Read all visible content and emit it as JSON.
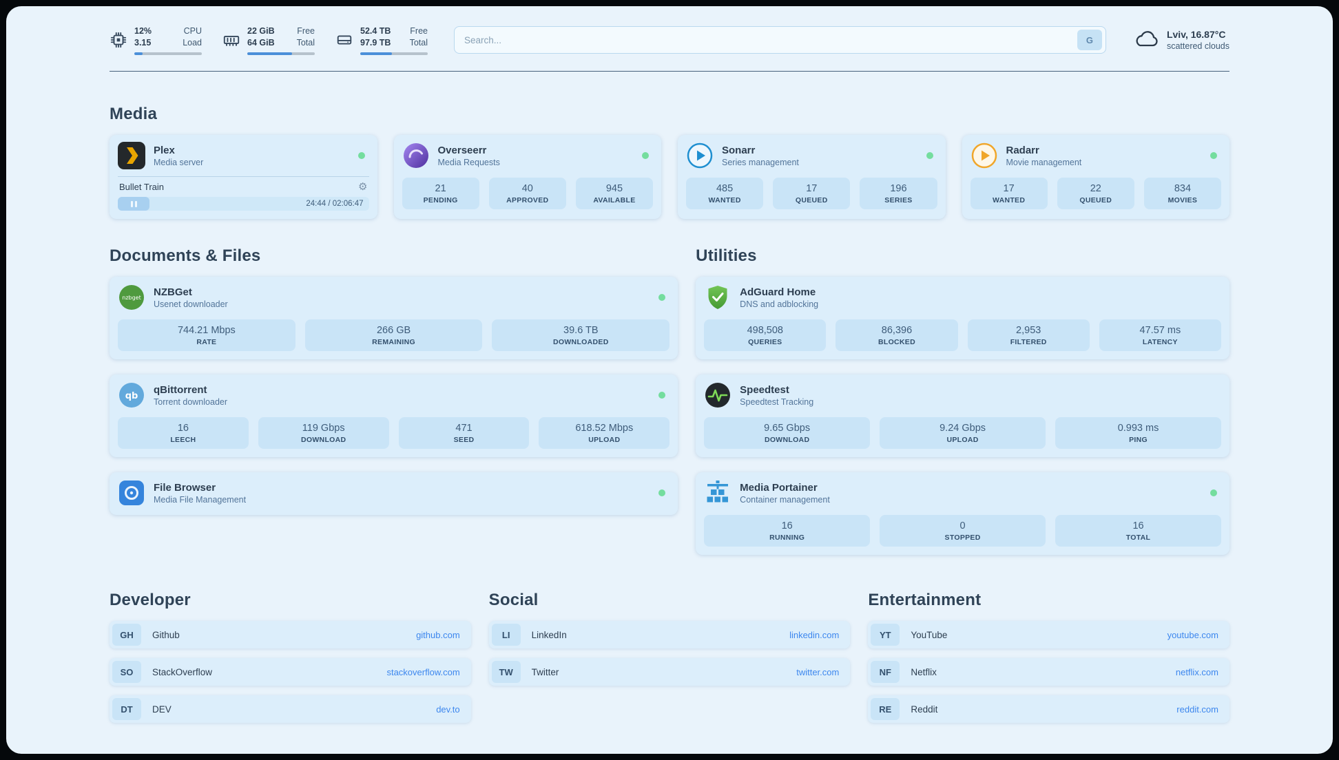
{
  "colors": {
    "page_background": "#e9f3fb",
    "card_background": "#dceefb",
    "stat_background": "#c9e4f7",
    "accent_blue": "#4b8fd9",
    "link_blue": "#3d87ee",
    "status_green": "#74dd9e"
  },
  "topbar": {
    "cpu": {
      "value1": "12%",
      "label1": "CPU",
      "value2": "3.15",
      "label2": "Load",
      "progress": 12
    },
    "memory": {
      "value1": "22 GiB",
      "label1": "Free",
      "value2": "64 GiB",
      "label2": "Total",
      "progress": 66
    },
    "disk": {
      "value1": "52.4 TB",
      "label1": "Free",
      "value2": "97.9 TB",
      "label2": "Total",
      "progress": 47
    },
    "search": {
      "placeholder": "Search...",
      "value": "",
      "button_label": "G"
    },
    "weather": {
      "location": "Lviv, 16.87°C",
      "condition": "scattered clouds"
    }
  },
  "media": {
    "title": "Media",
    "plex": {
      "name": "Plex",
      "subtitle": "Media server",
      "now_playing": "Bullet Train",
      "time": "24:44 / 02:06:47"
    },
    "overseerr": {
      "name": "Overseerr",
      "subtitle": "Media Requests",
      "stats": [
        {
          "value": "21",
          "label": "PENDING"
        },
        {
          "value": "40",
          "label": "APPROVED"
        },
        {
          "value": "945",
          "label": "AVAILABLE"
        }
      ]
    },
    "sonarr": {
      "name": "Sonarr",
      "subtitle": "Series management",
      "stats": [
        {
          "value": "485",
          "label": "WANTED"
        },
        {
          "value": "17",
          "label": "QUEUED"
        },
        {
          "value": "196",
          "label": "SERIES"
        }
      ]
    },
    "radarr": {
      "name": "Radarr",
      "subtitle": "Movie management",
      "stats": [
        {
          "value": "17",
          "label": "WANTED"
        },
        {
          "value": "22",
          "label": "QUEUED"
        },
        {
          "value": "834",
          "label": "MOVIES"
        }
      ]
    }
  },
  "documents": {
    "title": "Documents & Files",
    "nzbget": {
      "name": "NZBGet",
      "subtitle": "Usenet downloader",
      "icon_text": "nzbget",
      "stats": [
        {
          "value": "744.21 Mbps",
          "label": "RATE"
        },
        {
          "value": "266 GB",
          "label": "REMAINING"
        },
        {
          "value": "39.6 TB",
          "label": "DOWNLOADED"
        }
      ]
    },
    "qbittorrent": {
      "name": "qBittorrent",
      "subtitle": "Torrent downloader",
      "icon_text": "qb",
      "stats": [
        {
          "value": "16",
          "label": "LEECH"
        },
        {
          "value": "119 Gbps",
          "label": "DOWNLOAD"
        },
        {
          "value": "471",
          "label": "SEED"
        },
        {
          "value": "618.52 Mbps",
          "label": "UPLOAD"
        }
      ]
    },
    "filebrowser": {
      "name": "File Browser",
      "subtitle": "Media File Management"
    }
  },
  "utilities": {
    "title": "Utilities",
    "adguard": {
      "name": "AdGuard Home",
      "subtitle": "DNS and adblocking",
      "stats": [
        {
          "value": "498,508",
          "label": "QUERIES"
        },
        {
          "value": "86,396",
          "label": "BLOCKED"
        },
        {
          "value": "2,953",
          "label": "FILTERED"
        },
        {
          "value": "47.57 ms",
          "label": "LATENCY"
        }
      ]
    },
    "speedtest": {
      "name": "Speedtest",
      "subtitle": "Speedtest Tracking",
      "stats": [
        {
          "value": "9.65 Gbps",
          "label": "DOWNLOAD"
        },
        {
          "value": "9.24 Gbps",
          "label": "UPLOAD"
        },
        {
          "value": "0.993 ms",
          "label": "PING"
        }
      ]
    },
    "portainer": {
      "name": "Media Portainer",
      "subtitle": "Container management",
      "stats": [
        {
          "value": "16",
          "label": "RUNNING"
        },
        {
          "value": "0",
          "label": "STOPPED"
        },
        {
          "value": "16",
          "label": "TOTAL"
        }
      ]
    }
  },
  "bookmarks": {
    "developer": {
      "title": "Developer",
      "items": [
        {
          "abbr": "GH",
          "name": "Github",
          "url": "github.com"
        },
        {
          "abbr": "SO",
          "name": "StackOverflow",
          "url": "stackoverflow.com"
        },
        {
          "abbr": "DT",
          "name": "DEV",
          "url": "dev.to"
        }
      ]
    },
    "social": {
      "title": "Social",
      "items": [
        {
          "abbr": "LI",
          "name": "LinkedIn",
          "url": "linkedin.com"
        },
        {
          "abbr": "TW",
          "name": "Twitter",
          "url": "twitter.com"
        }
      ]
    },
    "entertainment": {
      "title": "Entertainment",
      "items": [
        {
          "abbr": "YT",
          "name": "YouTube",
          "url": "youtube.com"
        },
        {
          "abbr": "NF",
          "name": "Netflix",
          "url": "netflix.com"
        },
        {
          "abbr": "RE",
          "name": "Reddit",
          "url": "reddit.com"
        }
      ]
    }
  }
}
